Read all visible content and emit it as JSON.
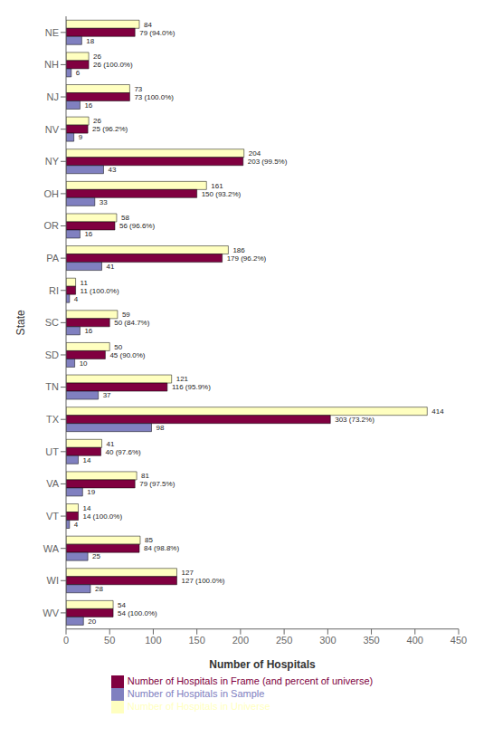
{
  "chart_data": {
    "type": "bar",
    "orientation": "horizontal",
    "xlabel": "Number of Hospitals",
    "ylabel": "State",
    "categories": [
      "NE",
      "NH",
      "NJ",
      "NV",
      "NY",
      "OH",
      "OR",
      "PA",
      "RI",
      "SC",
      "SD",
      "TN",
      "TX",
      "UT",
      "VA",
      "VT",
      "WA",
      "WI",
      "WV"
    ],
    "series": [
      {
        "name": "Number of Hospitals in Universe",
        "color": "#FFFFC0",
        "values": [
          84,
          26,
          73,
          26,
          204,
          161,
          58,
          186,
          11,
          59,
          50,
          121,
          414,
          41,
          81,
          14,
          85,
          127,
          54
        ]
      },
      {
        "name": "Number of Hospitals in Frame (and percent of universe)",
        "color": "#800040",
        "values": [
          79,
          26,
          73,
          25,
          203,
          150,
          56,
          179,
          11,
          50,
          45,
          116,
          303,
          40,
          79,
          14,
          84,
          127,
          54
        ],
        "value_labels": [
          "79 (94.0%)",
          "26 (100.0%)",
          "73 (100.0%)",
          "25 (96.2%)",
          "203 (99.5%)",
          "150 (93.2%)",
          "56 (96.6%)",
          "179 (96.2%)",
          "11 (100.0%)",
          "50 (84.7%)",
          "45 (90.0%)",
          "116 (95.9%)",
          "303 (73.2%)",
          "40 (97.6%)",
          "79 (97.5%)",
          "14 (100.0%)",
          "84 (98.8%)",
          "127 (100.0%)",
          "54 (100.0%)"
        ]
      },
      {
        "name": "Number of Hospitals in Sample",
        "color": "#8080C0",
        "values": [
          18,
          6,
          16,
          9,
          43,
          33,
          16,
          41,
          4,
          16,
          10,
          37,
          98,
          14,
          19,
          4,
          25,
          28,
          20
        ]
      }
    ],
    "xlim": [
      0,
      450
    ],
    "xticks": [
      0,
      50,
      100,
      150,
      200,
      250,
      300,
      350,
      400,
      450
    ],
    "data_labels": true,
    "legend": "bottom",
    "grid": false
  }
}
